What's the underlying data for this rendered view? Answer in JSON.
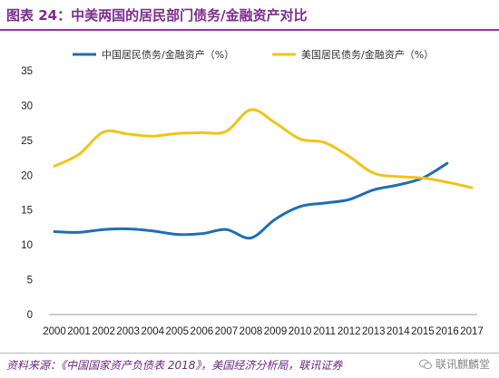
{
  "header": {
    "title": "图表 24：中美两国的居民部门债务/金融资产对比"
  },
  "footer": {
    "source": "资料来源：《中国国家资产负债表 2018》，美国经济分析局，联讯证券",
    "watermark": "联讯麒麟堂"
  },
  "icons": {
    "watermark": "wechat-icon"
  },
  "chart_data": {
    "type": "line",
    "x": [
      "2000",
      "2001",
      "2002",
      "2003",
      "2004",
      "2005",
      "2006",
      "2007",
      "2008",
      "2009",
      "2010",
      "2011",
      "2012",
      "2013",
      "2014",
      "2015",
      "2016",
      "2017"
    ],
    "ylim": [
      0,
      35
    ],
    "yticks": [
      0,
      5,
      10,
      15,
      20,
      25,
      30,
      35
    ],
    "grid": false,
    "legend_position": "top",
    "series": [
      {
        "name": "中国居民债务/金融资产（%）",
        "color": "#1f6eb5",
        "values": [
          11.9,
          11.8,
          12.2,
          12.3,
          12.0,
          11.5,
          11.6,
          12.2,
          11.0,
          13.7,
          15.5,
          16.0,
          16.5,
          17.9,
          18.6,
          19.6,
          21.7,
          null
        ]
      },
      {
        "name": "美国居民债务/金融资产（%）",
        "color": "#f0c419",
        "values": [
          21.3,
          23.0,
          26.2,
          25.9,
          25.6,
          26.0,
          26.1,
          26.3,
          29.4,
          27.5,
          25.2,
          24.7,
          22.7,
          20.3,
          19.8,
          19.6,
          19.0,
          18.2
        ]
      }
    ]
  }
}
